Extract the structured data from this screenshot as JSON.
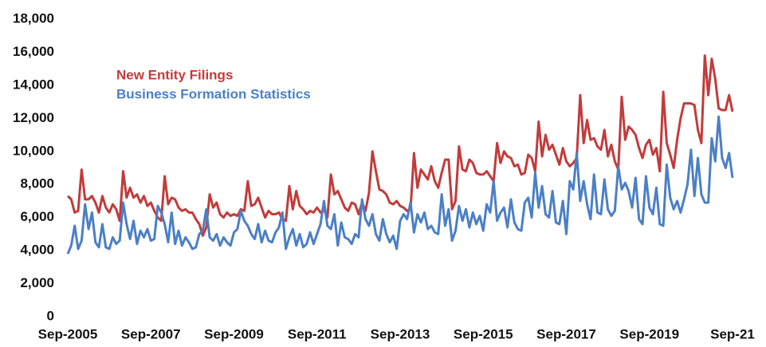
{
  "chart_data": {
    "type": "line",
    "categories": [
      "Sep-2005",
      null,
      null,
      null,
      null,
      null,
      null,
      null,
      null,
      null,
      null,
      null,
      null,
      null,
      null,
      null,
      null,
      null,
      null,
      null,
      null,
      null,
      null,
      null,
      "Sep-2007",
      null,
      null,
      null,
      null,
      null,
      null,
      null,
      null,
      null,
      null,
      null,
      null,
      null,
      null,
      null,
      null,
      null,
      null,
      null,
      null,
      null,
      null,
      null,
      "Sep-2009",
      null,
      null,
      null,
      null,
      null,
      null,
      null,
      null,
      null,
      null,
      null,
      null,
      null,
      null,
      null,
      null,
      null,
      null,
      null,
      null,
      null,
      null,
      null,
      "Sep-2011",
      null,
      null,
      null,
      null,
      null,
      null,
      null,
      null,
      null,
      null,
      null,
      null,
      null,
      null,
      null,
      null,
      null,
      null,
      null,
      null,
      null,
      null,
      null,
      "Sep-2013",
      null,
      null,
      null,
      null,
      null,
      null,
      null,
      null,
      null,
      null,
      null,
      null,
      null,
      null,
      null,
      null,
      null,
      null,
      null,
      null,
      null,
      null,
      null,
      "Sep-2015",
      null,
      null,
      null,
      null,
      null,
      null,
      null,
      null,
      null,
      null,
      null,
      null,
      null,
      null,
      null,
      null,
      null,
      null,
      null,
      null,
      null,
      null,
      null,
      "Sep-2017",
      null,
      null,
      null,
      null,
      null,
      null,
      null,
      null,
      null,
      null,
      null,
      null,
      null,
      null,
      null,
      null,
      null,
      null,
      null,
      null,
      null,
      null,
      null,
      "Sep-2019",
      null,
      null,
      null,
      null,
      null,
      null,
      null,
      null,
      null,
      null,
      null,
      null,
      null,
      null,
      null,
      null,
      null,
      null,
      null,
      null,
      null,
      null,
      null,
      "Sep-21"
    ],
    "series": [
      {
        "name": "New Entity Filings",
        "color": "#c23b3b",
        "values": [
          7300,
          7100,
          6300,
          6400,
          8900,
          7100,
          7100,
          7300,
          6900,
          6300,
          7300,
          6600,
          6300,
          6800,
          6500,
          5800,
          8800,
          7200,
          7800,
          7200,
          7400,
          6900,
          7300,
          6700,
          6900,
          6400,
          6000,
          5800,
          8500,
          6800,
          7200,
          7100,
          6600,
          6400,
          6500,
          6300,
          6300,
          5900,
          5600,
          4900,
          5400,
          7400,
          6600,
          6900,
          6200,
          6000,
          6300,
          6100,
          6200,
          6100,
          6500,
          6400,
          8200,
          6700,
          6800,
          7200,
          6600,
          6000,
          6400,
          6200,
          6200,
          6300,
          5900,
          5800,
          7900,
          6500,
          7600,
          6700,
          6500,
          6200,
          6400,
          6300,
          6600,
          6300,
          6500,
          6000,
          8600,
          7400,
          7600,
          7100,
          6600,
          6400,
          6900,
          6800,
          6200,
          6900,
          6400,
          7500,
          10000,
          8800,
          7700,
          7600,
          7400,
          6900,
          6800,
          7000,
          6700,
          6600,
          6400,
          6500,
          9900,
          7800,
          8900,
          8600,
          8300,
          9100,
          8200,
          7800,
          8700,
          9500,
          9500,
          6500,
          7000,
          10300,
          8900,
          8800,
          9500,
          9300,
          8700,
          8600,
          8600,
          8800,
          8500,
          8200,
          10500,
          9300,
          10000,
          9700,
          9600,
          9100,
          9200,
          8600,
          8700,
          9800,
          9600,
          8800,
          11800,
          9700,
          11000,
          10100,
          10400,
          9800,
          9200,
          10200,
          9400,
          9100,
          9300,
          9600,
          13400,
          10500,
          11900,
          10700,
          10800,
          10300,
          10100,
          11300,
          9700,
          10400,
          9400,
          8900,
          13300,
          10700,
          11500,
          11300,
          11000,
          10200,
          9600,
          10400,
          10700,
          9800,
          10200,
          8800,
          13600,
          10500,
          9800,
          9000,
          10700,
          12000,
          12900,
          12900,
          12900,
          12800,
          11300,
          10500,
          15800,
          13400,
          15600,
          14400,
          12600,
          12500,
          12500,
          13400,
          12400
        ]
      },
      {
        "name": "Business Formation Statistics",
        "color": "#4b7fc6",
        "values": [
          3800,
          4300,
          5500,
          4100,
          4600,
          6800,
          5300,
          6300,
          4500,
          4200,
          5600,
          4200,
          4100,
          4800,
          4400,
          4600,
          6900,
          5600,
          4700,
          5800,
          4400,
          5200,
          4800,
          5300,
          4600,
          4700,
          6700,
          6300,
          5600,
          4500,
          6300,
          4400,
          5200,
          4300,
          4800,
          4500,
          4100,
          4200,
          5000,
          5200,
          6500,
          4800,
          4600,
          5000,
          4300,
          4800,
          4500,
          4300,
          5100,
          5300,
          6400,
          5800,
          5500,
          5000,
          4700,
          5600,
          4500,
          5200,
          4600,
          4500,
          5100,
          5400,
          6300,
          4100,
          4800,
          5300,
          4300,
          5000,
          4200,
          4400,
          5100,
          4400,
          5000,
          5600,
          7000,
          5500,
          5300,
          6200,
          4300,
          5700,
          4800,
          4700,
          4400,
          5000,
          4800,
          7100,
          5900,
          5500,
          6200,
          5000,
          4600,
          5900,
          5000,
          4500,
          4900,
          4100,
          5800,
          6200,
          5900,
          6900,
          5100,
          6200,
          5700,
          6300,
          5300,
          5500,
          5100,
          5000,
          7400,
          5500,
          6500,
          4600,
          5200,
          6700,
          5800,
          6500,
          5400,
          6300,
          5600,
          6100,
          5200,
          6800,
          6300,
          8200,
          5800,
          6300,
          6600,
          5400,
          7100,
          5700,
          5300,
          5200,
          6900,
          7200,
          6000,
          8700,
          6600,
          7900,
          6200,
          6000,
          7600,
          5700,
          5600,
          7000,
          5000,
          8200,
          7700,
          9900,
          7000,
          8200,
          6800,
          5900,
          8600,
          6300,
          6200,
          8300,
          6500,
          6100,
          6400,
          9100,
          7700,
          8100,
          7600,
          6600,
          8400,
          5900,
          5600,
          8500,
          6600,
          6200,
          7800,
          5600,
          5500,
          9200,
          7200,
          6500,
          7000,
          6300,
          7100,
          8000,
          10100,
          7300,
          9600,
          7400,
          6900,
          6900,
          10800,
          9400,
          12100,
          9600,
          9000,
          9900,
          8400
        ]
      }
    ],
    "ylim": [
      0,
      18000
    ],
    "yticks": [
      0,
      {
        "value": 2000,
        "label": "2,000"
      },
      {
        "value": 4000,
        "label": "4,000"
      },
      {
        "value": 6000,
        "label": "6,000"
      },
      {
        "value": 8000,
        "label": "8,000"
      },
      {
        "value": 10000,
        "label": "10,000"
      },
      {
        "value": 12000,
        "label": "12,000"
      },
      {
        "value": 14000,
        "label": "14,000"
      },
      {
        "value": 16000,
        "label": "16,000"
      },
      {
        "value": 18000,
        "label": "18,000"
      }
    ],
    "grid": false
  }
}
